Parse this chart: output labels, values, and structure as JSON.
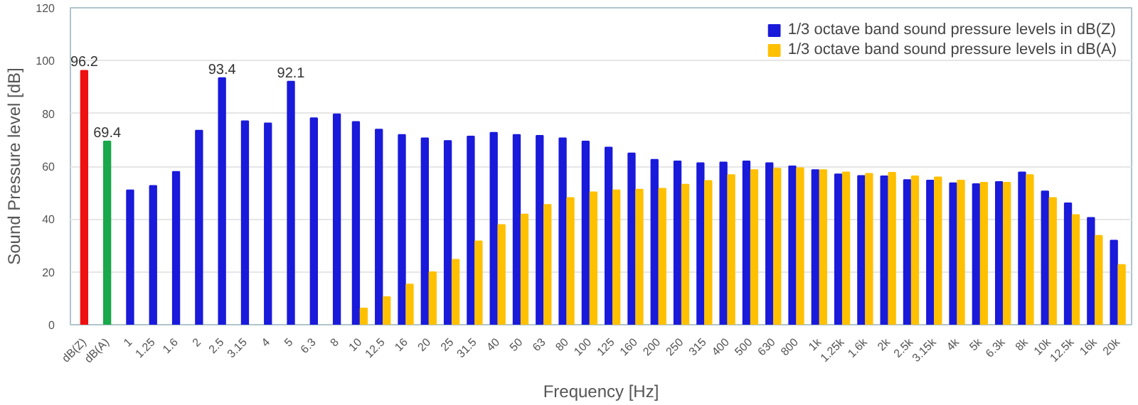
{
  "chart_data": {
    "type": "bar",
    "xlabel": "Frequency [Hz]",
    "ylabel": "Sound Pressure level [dB]",
    "categories": [
      "dB(Z)",
      "dB(A)",
      "1",
      "1.25",
      "1.6",
      "2",
      "2.5",
      "3.15",
      "4",
      "5",
      "6.3",
      "8",
      "10",
      "12.5",
      "16",
      "20",
      "25",
      "31.5",
      "40",
      "50",
      "63",
      "80",
      "100",
      "125",
      "160",
      "200",
      "250",
      "315",
      "400",
      "500",
      "630",
      "800",
      "1k",
      "1.25k",
      "1.6k",
      "2k",
      "2.5k",
      "3.15k",
      "4k",
      "5k",
      "6.3k",
      "8k",
      "10k",
      "12.5k",
      "16k",
      "20k"
    ],
    "series": [
      {
        "colors": [
          "#ee1111",
          "#1aa84a",
          null,
          null,
          null,
          null,
          null,
          null,
          null,
          null,
          null,
          null,
          null,
          null,
          null,
          null,
          null,
          null,
          null,
          null,
          null,
          null,
          null,
          null,
          null,
          null,
          null,
          null,
          null,
          null,
          null,
          null,
          null,
          null,
          null,
          null,
          null,
          null,
          null,
          null,
          null,
          null,
          null,
          null,
          null,
          null
        ],
        "values": [
          96.2,
          69.4,
          null,
          null,
          null,
          null,
          null,
          null,
          null,
          null,
          null,
          null,
          null,
          null,
          null,
          null,
          null,
          null,
          null,
          null,
          null,
          null,
          null,
          null,
          null,
          null,
          null,
          null,
          null,
          null,
          null,
          null,
          null,
          null,
          null,
          null,
          null,
          null,
          null,
          null,
          null,
          null,
          null,
          null,
          null,
          null
        ],
        "value_labels": [
          "96.2",
          "69.4",
          null,
          null,
          null,
          null,
          null,
          null,
          null,
          null,
          null,
          null,
          null,
          null,
          null,
          null,
          null,
          null,
          null,
          null,
          null,
          null,
          null,
          null,
          null,
          null,
          null,
          null,
          null,
          null,
          null,
          null,
          null,
          null,
          null,
          null,
          null,
          null,
          null,
          null,
          null,
          null,
          null,
          null,
          null,
          null
        ]
      },
      {
        "name": "1/3 octave band sound pressure levels in dB(Z)",
        "color": "#1a1adb",
        "values": [
          null,
          null,
          50.9,
          52.6,
          57.9,
          73.5,
          93.4,
          77.1,
          76.3,
          92.1,
          78.2,
          79.7,
          76.8,
          73.9,
          71.9,
          70.6,
          69.6,
          71.3,
          72.7,
          71.9,
          71.6,
          70.6,
          69.4,
          67.1,
          64.9,
          62.5,
          61.9,
          61.2,
          61.5,
          61.9,
          61.2,
          60,
          58.6,
          57,
          56.4,
          56.2,
          54.8,
          54.6,
          53.6,
          53.3,
          54.1,
          57.7,
          50.5,
          46,
          40.5,
          31.9
        ],
        "value_labels": [
          null,
          null,
          null,
          null,
          null,
          null,
          "93.4",
          null,
          null,
          "92.1",
          null,
          null,
          null,
          null,
          null,
          null,
          null,
          null,
          null,
          null,
          null,
          null,
          null,
          null,
          null,
          null,
          null,
          null,
          null,
          null,
          null,
          null,
          null,
          null,
          null,
          null,
          null,
          null,
          null,
          null,
          null,
          null,
          null,
          null,
          null,
          null
        ]
      },
      {
        "name": "1/3 octave band sound pressure levels in dB(A)",
        "color": "#ffc000",
        "values": [
          null,
          null,
          null,
          null,
          null,
          null,
          null,
          null,
          null,
          null,
          null,
          null,
          6.2,
          10.5,
          15.3,
          19.9,
          24.6,
          31.6,
          37.8,
          41.8,
          45.4,
          48,
          50.2,
          50.9,
          51.2,
          51.5,
          53.1,
          54.5,
          56.7,
          58.6,
          59.1,
          59.3,
          58.6,
          57.7,
          57.2,
          57.6,
          56.2,
          55.8,
          54.6,
          53.8,
          53.8,
          56.7,
          48,
          41.6,
          33.7,
          22.7
        ]
      }
    ],
    "ylim": [
      0,
      120
    ],
    "yticks": [
      0,
      20,
      40,
      60,
      80,
      100,
      120
    ],
    "grid": "y",
    "legend": "top right"
  }
}
